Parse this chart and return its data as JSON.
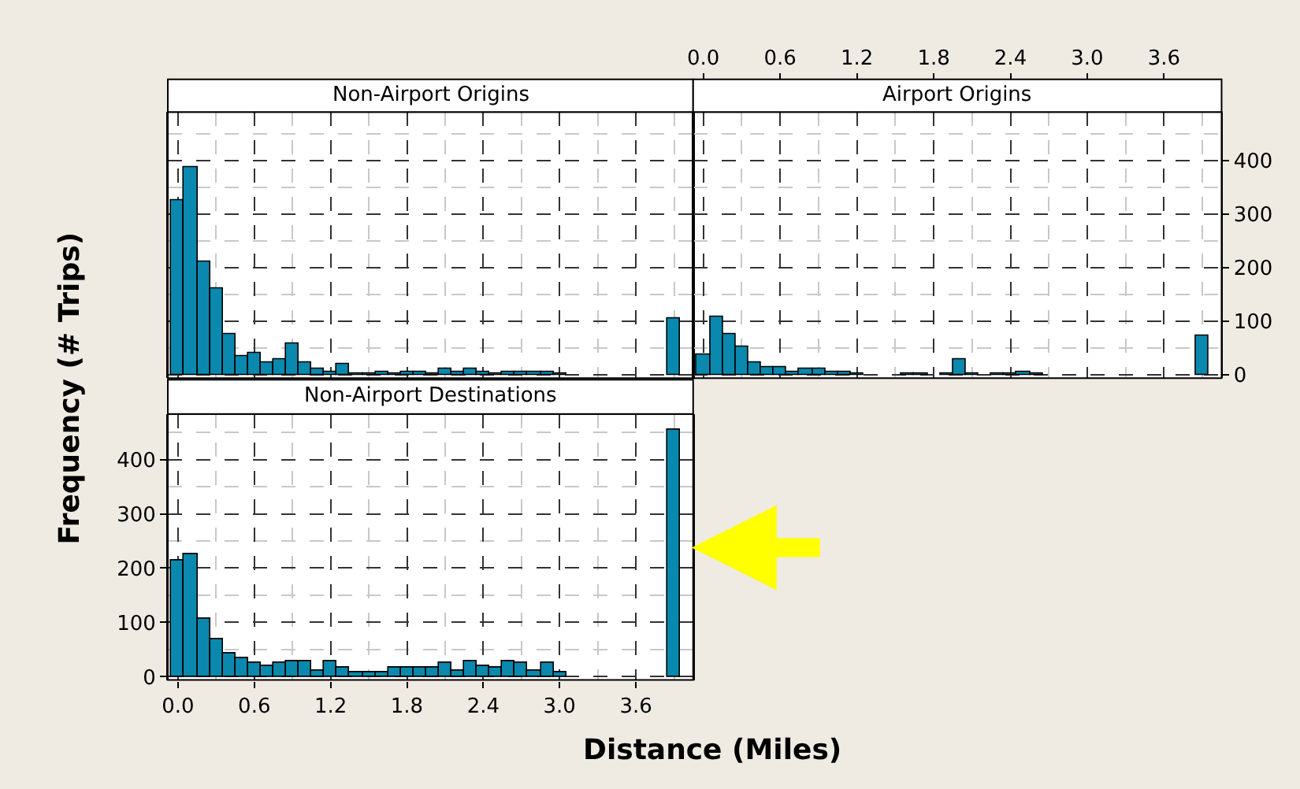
{
  "chart_data": [
    {
      "type": "histogram",
      "title": "Non-Airport Origins",
      "color": "#0a88ad",
      "grid": true,
      "tick_labels": false,
      "bins": [
        -0.05,
        0.05,
        0.15,
        0.25,
        0.35,
        0.45,
        0.55,
        0.65,
        0.75,
        0.85,
        0.95,
        1.05,
        1.15,
        1.25,
        1.35,
        1.45,
        1.55,
        1.65,
        1.75,
        1.85,
        1.95,
        2.05,
        2.15,
        2.25,
        2.35,
        2.45,
        2.55,
        2.65,
        2.75,
        2.85,
        2.95,
        3.05,
        3.15,
        3.25,
        3.35,
        3.45,
        3.55,
        3.65,
        3.75,
        3.85,
        3.95
      ],
      "values": [
        325,
        387,
        212,
        162,
        75,
        36,
        41,
        24,
        28,
        58,
        24,
        12,
        5,
        20,
        3,
        3,
        7,
        3,
        7,
        7,
        3,
        12,
        7,
        12,
        7,
        3,
        7,
        7,
        7,
        7,
        2,
        0,
        0,
        0,
        0,
        0,
        0,
        0,
        0,
        106
      ],
      "xlim": [
        -0.08,
        4.05
      ],
      "ylim": [
        -6,
        490
      ],
      "xticks": [
        {
          "value": 0,
          "label": null
        },
        {
          "value": 0.6,
          "label": null
        },
        {
          "value": 1.2,
          "label": null
        },
        {
          "value": 1.8,
          "label": null
        },
        {
          "value": 2.4,
          "label": null
        },
        {
          "value": 3,
          "label": null
        },
        {
          "value": 3.6,
          "label": null
        }
      ],
      "yticks": [
        {
          "value": 0,
          "label": null
        },
        {
          "value": 100,
          "label": null
        },
        {
          "value": 200,
          "label": null
        },
        {
          "value": 300,
          "label": null
        },
        {
          "value": 400,
          "label": null
        }
      ]
    },
    {
      "type": "histogram",
      "title": "Airport Origins",
      "color": "#0a88ad",
      "grid": true,
      "bins": [
        -0.05,
        0.05,
        0.15,
        0.25,
        0.35,
        0.45,
        0.55,
        0.65,
        0.75,
        0.85,
        0.95,
        1.05,
        1.15,
        1.25,
        1.35,
        1.45,
        1.55,
        1.65,
        1.75,
        1.85,
        1.95,
        2.05,
        2.15,
        2.25,
        2.35,
        2.45,
        2.55,
        2.65,
        2.75,
        2.85,
        2.95,
        3.05,
        3.15,
        3.25,
        3.35,
        3.45,
        3.55,
        3.65,
        3.75,
        3.85,
        3.95
      ],
      "values": [
        37,
        109,
        75,
        54,
        24,
        14,
        14,
        7,
        12,
        12,
        7,
        7,
        2,
        0,
        0,
        0,
        3,
        3,
        0,
        3,
        29,
        3,
        0,
        3,
        3,
        7,
        3,
        0,
        0,
        0,
        0,
        0,
        0,
        0,
        0,
        0,
        0,
        0,
        0,
        72
      ],
      "xlim": [
        -0.08,
        4.05
      ],
      "ylim": [
        -6,
        490
      ],
      "xticks": [
        {
          "value": 0,
          "label": "0.0"
        },
        0.6,
        1.2,
        1.8,
        2.4,
        {
          "value": 3,
          "label": "3.0"
        },
        3.6
      ],
      "yticks": [
        0,
        100,
        200,
        300,
        400
      ]
    },
    {
      "type": "histogram",
      "title": "Non-Airport Destinations",
      "color": "#0a88ad",
      "grid": true,
      "xlabel": "Distance (Miles)",
      "ylabel": "Frequency (# Trips)",
      "bins": [
        -0.05,
        0.05,
        0.15,
        0.25,
        0.35,
        0.45,
        0.55,
        0.65,
        0.75,
        0.85,
        0.95,
        1.05,
        1.15,
        1.25,
        1.35,
        1.45,
        1.55,
        1.65,
        1.75,
        1.85,
        1.95,
        2.05,
        2.15,
        2.25,
        2.35,
        2.45,
        2.55,
        2.65,
        2.75,
        2.85,
        2.95,
        3.05,
        3.15,
        3.25,
        3.35,
        3.45,
        3.55,
        3.65,
        3.75,
        3.85,
        3.95
      ],
      "values": [
        213,
        227,
        107,
        68,
        44,
        34,
        25,
        20,
        25,
        30,
        30,
        12,
        30,
        17,
        8,
        8,
        8,
        16,
        16,
        16,
        16,
        26,
        12,
        30,
        21,
        17,
        30,
        26,
        12,
        26,
        9,
        0,
        0,
        0,
        0,
        0,
        0,
        0,
        0,
        455
      ],
      "xlim": [
        -0.08,
        4.05
      ],
      "ylim": [
        -6,
        484
      ],
      "xticks": [
        {
          "value": 0,
          "label": "0.0"
        },
        0.6,
        1.2,
        1.8,
        2.4,
        {
          "value": 3,
          "label": "3.0"
        },
        3.6
      ],
      "yticks": [
        0,
        100,
        200,
        300,
        400
      ]
    }
  ]
}
